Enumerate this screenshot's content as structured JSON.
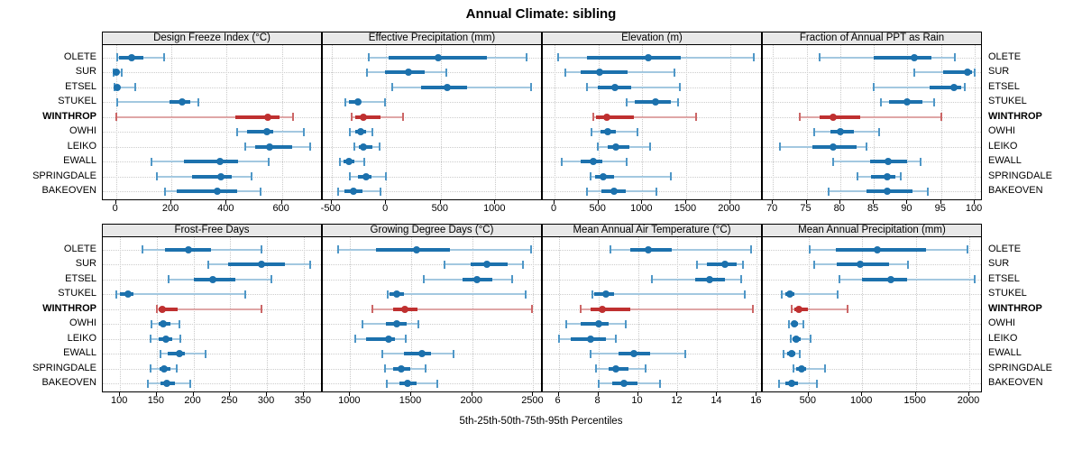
{
  "title": "Annual Climate: sibling",
  "caption": "5th-25th-50th-75th-95th Percentiles",
  "sites": [
    "OLETE",
    "SUR",
    "ETSEL",
    "STUKEL",
    "WINTHROP",
    "OWHI",
    "LEIKO",
    "EWALL",
    "SPRINGDALE",
    "BAKEOVEN"
  ],
  "highlight_site": "WINTHROP",
  "colors": {
    "blue": "#1c71ad",
    "blue_light": "#a3c8e0",
    "blue_cap": "#4f97c7",
    "red": "#bf3030",
    "red_light": "#dfa6a6",
    "red_cap": "#cc6666",
    "header_bg": "#e8e8e8",
    "grid": "#cccccc"
  },
  "chart_data": [
    {
      "type": "dotplot-percentiles",
      "title": "Design Freeze Index (°C)",
      "percentiles": [
        5,
        25,
        50,
        75,
        95
      ],
      "xlim": [
        -48,
        748
      ],
      "ticks": [
        0,
        200,
        400,
        600
      ],
      "values": [
        [
          5,
          10,
          57,
          100,
          175
        ],
        [
          -9,
          -4,
          1,
          5,
          19
        ],
        [
          -5,
          -2,
          4,
          13,
          68
        ],
        [
          5,
          195,
          240,
          270,
          297
        ],
        [
          2,
          430,
          550,
          592,
          640
        ],
        [
          437,
          475,
          545,
          570,
          680
        ],
        [
          466,
          502,
          554,
          636,
          703
        ],
        [
          127,
          246,
          377,
          442,
          553
        ],
        [
          147,
          274,
          380,
          420,
          491
        ],
        [
          176,
          219,
          366,
          437,
          524
        ]
      ]
    },
    {
      "type": "dotplot-percentiles",
      "title": "Effective Precipitation (mm)",
      "percentiles": [
        5,
        25,
        50,
        75,
        95
      ],
      "xlim": [
        -580,
        1435
      ],
      "ticks": [
        -500,
        0,
        500,
        1000
      ],
      "values": [
        [
          -160,
          25,
          473,
          921,
          1285
        ],
        [
          -179,
          -10,
          204,
          355,
          550
        ],
        [
          52,
          322,
          561,
          742,
          1331
        ],
        [
          -370,
          -344,
          -262,
          -229,
          -8
        ],
        [
          -316,
          -283,
          -206,
          -50,
          151
        ],
        [
          -333,
          -283,
          -237,
          -187,
          -124
        ],
        [
          -289,
          -250,
          -206,
          -124,
          -58
        ],
        [
          -426,
          -393,
          -344,
          -289,
          -196
        ],
        [
          -333,
          -256,
          -187,
          -132,
          0
        ],
        [
          -443,
          -380,
          -297,
          -215,
          -50
        ]
      ]
    },
    {
      "type": "dotplot-percentiles",
      "title": "Elevation (m)",
      "percentiles": [
        5,
        25,
        50,
        75,
        95
      ],
      "xlim": [
        -135,
        2375
      ],
      "ticks": [
        0,
        500,
        1000,
        1500,
        2000
      ],
      "values": [
        [
          45,
          365,
          1065,
          1435,
          2275
        ],
        [
          123,
          302,
          515,
          833,
          1365
        ],
        [
          364,
          490,
          690,
          878,
          1427
        ],
        [
          823,
          919,
          1152,
          1324,
          1406
        ],
        [
          446,
          473,
          593,
          902,
          1612
        ],
        [
          422,
          525,
          604,
          696,
          947
        ],
        [
          490,
          604,
          696,
          851,
          1091
        ],
        [
          79,
          295,
          446,
          542,
          823
        ],
        [
          412,
          466,
          559,
          679,
          1324
        ],
        [
          364,
          535,
          679,
          809,
          1166
        ]
      ]
    },
    {
      "type": "dotplot-percentiles",
      "title": "Fraction of Annual PPT as Rain",
      "percentiles": [
        5,
        25,
        50,
        75,
        95
      ],
      "xlim": [
        68.5,
        101.2
      ],
      "ticks": [
        70,
        75,
        80,
        85,
        90,
        95,
        100
      ],
      "values": [
        [
          77,
          85,
          91,
          93.5,
          97
        ],
        [
          91,
          95.3,
          98.9,
          99.6,
          100
        ],
        [
          85,
          93.3,
          96.9,
          98,
          98.5
        ],
        [
          86,
          87.3,
          90,
          92.2,
          93.9
        ],
        [
          74,
          77,
          79,
          83,
          95
        ],
        [
          76.1,
          78.6,
          80,
          82.1,
          85.8
        ],
        [
          71.1,
          75.9,
          78.9,
          82.4,
          83.9
        ],
        [
          79,
          84.4,
          87.1,
          89.9,
          91.9
        ],
        [
          82.6,
          84.6,
          87,
          88.2,
          89
        ],
        [
          78.3,
          83.9,
          87,
          90.8,
          93
        ]
      ]
    },
    {
      "type": "dotplot-percentiles",
      "title": "Frost-Free Days",
      "percentiles": [
        5,
        25,
        50,
        75,
        95
      ],
      "xlim": [
        76.5,
        376
      ],
      "ticks": [
        100,
        150,
        200,
        250,
        300,
        350
      ],
      "values": [
        [
          131,
          161,
          193,
          224,
          293
        ],
        [
          220,
          247,
          293,
          325,
          359
        ],
        [
          166,
          200,
          226,
          257,
          306
        ],
        [
          95,
          100,
          111,
          118,
          270
        ],
        [
          150,
          152,
          158,
          179,
          293
        ],
        [
          143,
          152,
          159,
          168,
          181
        ],
        [
          141,
          153,
          162,
          171,
          182
        ],
        [
          155,
          165,
          181,
          188,
          216
        ],
        [
          141,
          154,
          160,
          168,
          177
        ],
        [
          138,
          155,
          164,
          175,
          195
        ]
      ]
    },
    {
      "type": "dotplot-percentiles",
      "title": "Growing Degree Days (°C)",
      "percentiles": [
        5,
        25,
        50,
        75,
        95
      ],
      "xlim": [
        776,
        2578
      ],
      "ticks": [
        1000,
        1500,
        2000,
        2500
      ],
      "values": [
        [
          900,
          1215,
          1545,
          1815,
          2485
        ],
        [
          1770,
          1990,
          2120,
          2290,
          2415
        ],
        [
          1600,
          1920,
          2040,
          2165,
          2330
        ],
        [
          1310,
          1325,
          1380,
          1440,
          2440
        ],
        [
          1185,
          1350,
          1445,
          1550,
          2490
        ],
        [
          1100,
          1290,
          1380,
          1460,
          1560
        ],
        [
          1040,
          1130,
          1315,
          1370,
          1455
        ],
        [
          1265,
          1440,
          1585,
          1660,
          1850
        ],
        [
          1285,
          1350,
          1420,
          1490,
          1620
        ],
        [
          1300,
          1405,
          1470,
          1545,
          1715
        ]
      ]
    },
    {
      "type": "dotplot-percentiles",
      "title": "Mean Annual Air Temperature (°C)",
      "percentiles": [
        5,
        25,
        50,
        75,
        95
      ],
      "xlim": [
        5.2,
        16.3
      ],
      "ticks": [
        6,
        8,
        10,
        12,
        14,
        16
      ],
      "values": [
        [
          8.6,
          9.6,
          10.5,
          11.7,
          15.7
        ],
        [
          13.0,
          13.5,
          14.4,
          15.0,
          15.3
        ],
        [
          10.7,
          12.9,
          13.6,
          14.4,
          15.2
        ],
        [
          7.7,
          7.8,
          8.4,
          8.8,
          15.4
        ],
        [
          7.1,
          7.6,
          8.2,
          9.6,
          15.8
        ],
        [
          6.4,
          7.1,
          8.0,
          8.5,
          9.4
        ],
        [
          6.0,
          6.6,
          7.6,
          8.4,
          8.9
        ],
        [
          7.6,
          9.0,
          9.8,
          10.6,
          12.4
        ],
        [
          7.9,
          8.5,
          8.9,
          9.5,
          10.4
        ],
        [
          8.0,
          8.7,
          9.3,
          10.0,
          11.1
        ]
      ]
    },
    {
      "type": "dotplot-percentiles",
      "title": "Mean Annual Precipitation (mm)",
      "percentiles": [
        5,
        25,
        50,
        75,
        95
      ],
      "xlim": [
        72.5,
        2126
      ],
      "ticks": [
        500,
        1000,
        1500,
        2000
      ],
      "values": [
        [
          510,
          750,
          1140,
          1600,
          1980
        ],
        [
          555,
          760,
          980,
          1250,
          1430
        ],
        [
          790,
          1000,
          1270,
          1420,
          2050
        ],
        [
          247,
          284,
          326,
          368,
          775
        ],
        [
          340,
          368,
          410,
          494,
          860
        ],
        [
          320,
          340,
          368,
          404,
          452
        ],
        [
          330,
          354,
          388,
          424,
          517
        ],
        [
          270,
          303,
          340,
          376,
          416
        ],
        [
          362,
          388,
          433,
          480,
          649
        ],
        [
          228,
          284,
          340,
          404,
          579
        ]
      ]
    }
  ]
}
